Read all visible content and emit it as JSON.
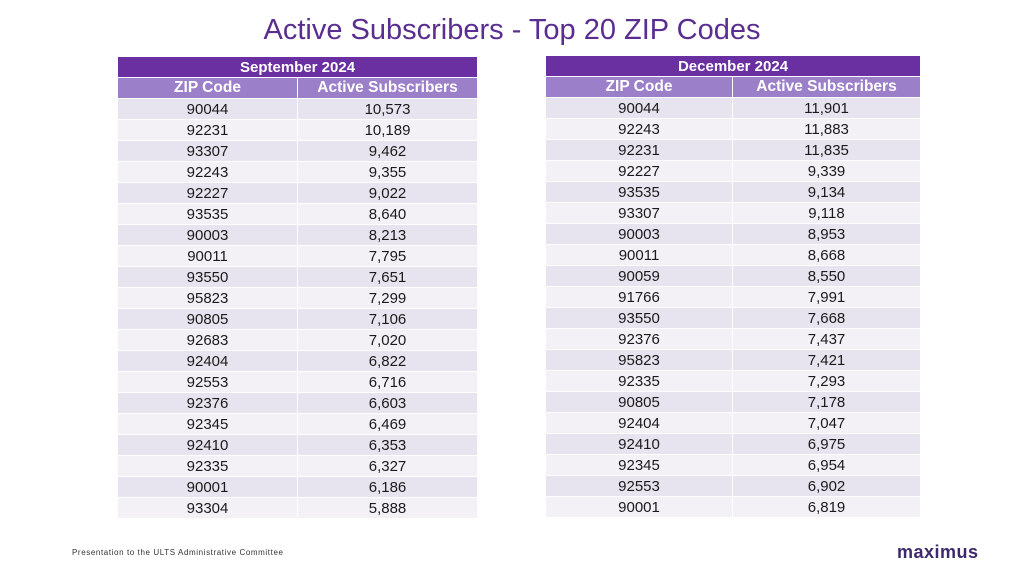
{
  "title": "Active Subscribers - Top 20 ZIP Codes",
  "footer": "Presentation to the ULTS Administrative Committee",
  "logo": "maximus",
  "colors": {
    "title": "#5a2d91",
    "header_dark": "#6a2fa0",
    "header_light": "#9c7fc9",
    "row_odd": "#e8e4ef",
    "row_even": "#f3f1f6"
  },
  "tables": [
    {
      "period": "September 2024",
      "columns": [
        "ZIP Code",
        "Active Subscribers"
      ],
      "rows": [
        [
          "90044",
          "10,573"
        ],
        [
          "92231",
          "10,189"
        ],
        [
          "93307",
          "9,462"
        ],
        [
          "92243",
          "9,355"
        ],
        [
          "92227",
          "9,022"
        ],
        [
          "93535",
          "8,640"
        ],
        [
          "90003",
          "8,213"
        ],
        [
          "90011",
          "7,795"
        ],
        [
          "93550",
          "7,651"
        ],
        [
          "95823",
          "7,299"
        ],
        [
          "90805",
          "7,106"
        ],
        [
          "92683",
          "7,020"
        ],
        [
          "92404",
          "6,822"
        ],
        [
          "92553",
          "6,716"
        ],
        [
          "92376",
          "6,603"
        ],
        [
          "92345",
          "6,469"
        ],
        [
          "92410",
          "6,353"
        ],
        [
          "92335",
          "6,327"
        ],
        [
          "90001",
          "6,186"
        ],
        [
          "93304",
          "5,888"
        ]
      ]
    },
    {
      "period": "December 2024",
      "columns": [
        "ZIP Code",
        "Active Subscribers"
      ],
      "rows": [
        [
          "90044",
          "11,901"
        ],
        [
          "92243",
          "11,883"
        ],
        [
          "92231",
          "11,835"
        ],
        [
          "92227",
          "9,339"
        ],
        [
          "93535",
          "9,134"
        ],
        [
          "93307",
          "9,118"
        ],
        [
          "90003",
          "8,953"
        ],
        [
          "90011",
          "8,668"
        ],
        [
          "90059",
          "8,550"
        ],
        [
          "91766",
          "7,991"
        ],
        [
          "93550",
          "7,668"
        ],
        [
          "92376",
          "7,437"
        ],
        [
          "95823",
          "7,421"
        ],
        [
          "92335",
          "7,293"
        ],
        [
          "90805",
          "7,178"
        ],
        [
          "92404",
          "7,047"
        ],
        [
          "92410",
          "6,975"
        ],
        [
          "92345",
          "6,954"
        ],
        [
          "92553",
          "6,902"
        ],
        [
          "90001",
          "6,819"
        ]
      ]
    }
  ]
}
